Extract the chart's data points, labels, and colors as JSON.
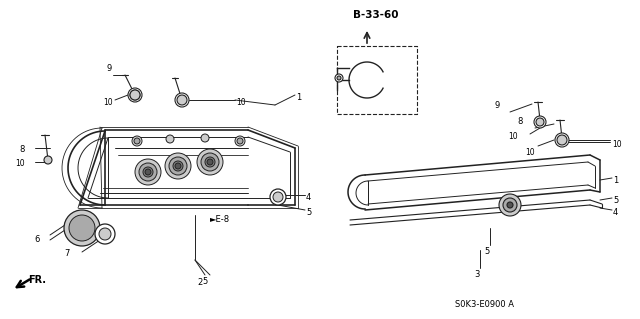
{
  "bg_color": "#ffffff",
  "line_color": "#222222",
  "ref_code": "B-33-60",
  "part_code": "S0K3-E0900 A",
  "e8_label": "►E-8",
  "fr_label": "FR."
}
